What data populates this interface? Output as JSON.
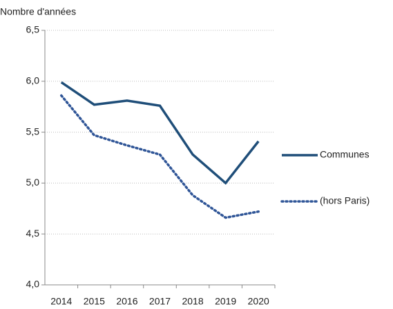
{
  "chart_data": {
    "type": "line",
    "y_label": "Nombre d'années",
    "categories": [
      "2014",
      "2015",
      "2016",
      "2017",
      "2018",
      "2019",
      "2020"
    ],
    "series": [
      {
        "name": "Communes",
        "color": "#1f4e79",
        "style": "solid",
        "values": [
          5.99,
          5.77,
          5.81,
          5.76,
          5.28,
          5.0,
          5.41
        ]
      },
      {
        "name": "(hors Paris)",
        "color": "#2f5597",
        "style": "dotted",
        "values": [
          5.86,
          5.47,
          5.37,
          5.28,
          4.88,
          4.66,
          4.72
        ]
      }
    ],
    "ylim": [
      4.0,
      6.5
    ],
    "yticks": [
      {
        "value": 4.0,
        "label": "4,0"
      },
      {
        "value": 4.5,
        "label": "4,5"
      },
      {
        "value": 5.0,
        "label": "5,0"
      },
      {
        "value": 5.5,
        "label": "5,5"
      },
      {
        "value": 6.0,
        "label": "6,0"
      },
      {
        "value": 6.5,
        "label": "6,5"
      }
    ],
    "grid": true,
    "legend": "right"
  }
}
